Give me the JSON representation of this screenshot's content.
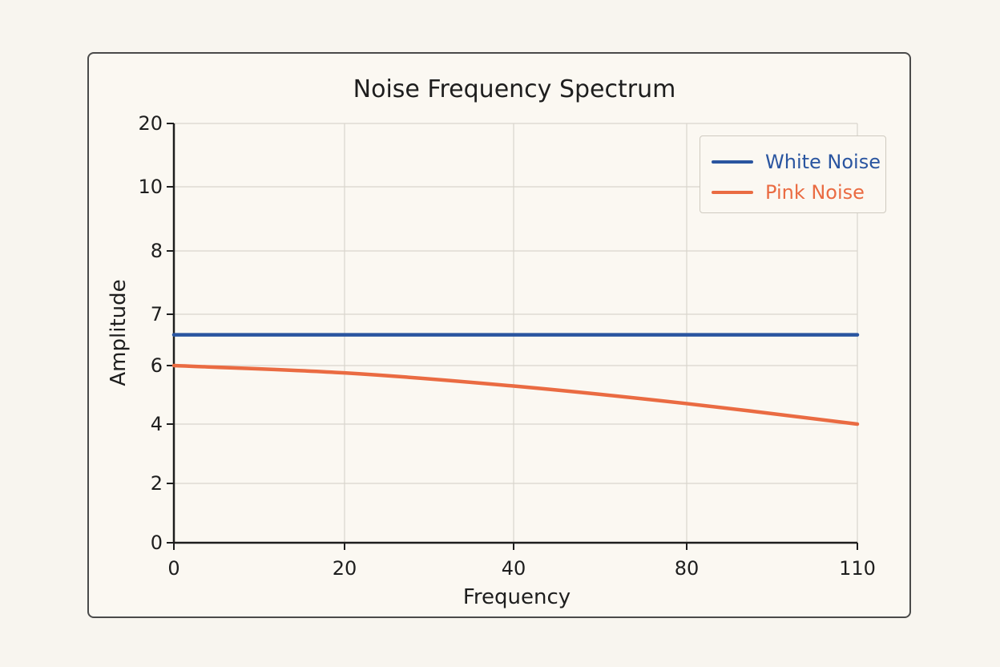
{
  "chart_data": {
    "type": "line",
    "title": "Noise Frequency Spectrum",
    "xlabel": "Frequency",
    "ylabel": "Amplitude",
    "x_ticks": [
      "0",
      "20",
      "40",
      "80",
      "110"
    ],
    "y_ticks": [
      "0",
      "2",
      "4",
      "6",
      "7",
      "8",
      "10",
      "20"
    ],
    "grid": true,
    "legend_position": "top-right",
    "series": [
      {
        "name": "White Noise",
        "color": "#2a55a0",
        "x": [
          0,
          20,
          40,
          80,
          110
        ],
        "y": [
          6.6,
          6.6,
          6.6,
          6.6,
          6.6
        ]
      },
      {
        "name": "Pink Noise",
        "color": "#ea6b42",
        "x": [
          0,
          20,
          40,
          80,
          110
        ],
        "y": [
          6.0,
          5.75,
          5.3,
          4.7,
          4.0
        ]
      }
    ]
  }
}
